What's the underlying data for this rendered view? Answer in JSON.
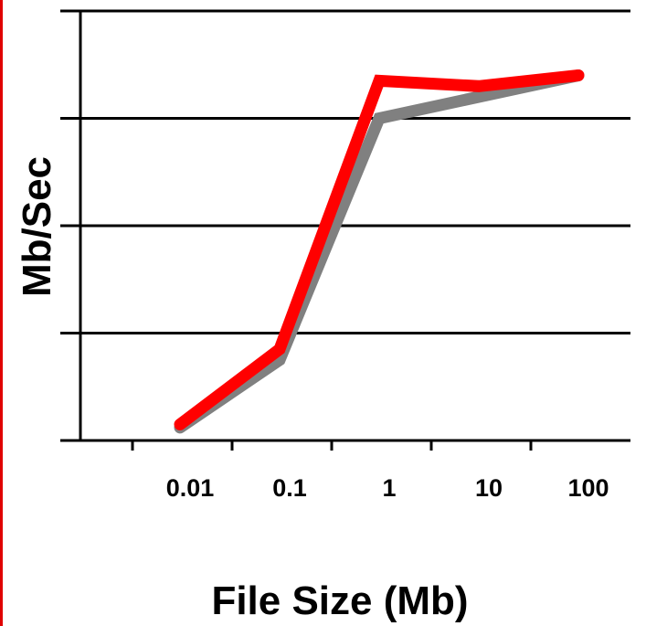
{
  "chart_data": {
    "type": "line",
    "x": [
      0.03,
      0.3,
      3,
      30,
      300
    ],
    "x_scale": "log",
    "xlim": [
      0.003,
      1000
    ],
    "xticks": [
      0.01,
      0.1,
      1,
      10,
      100
    ],
    "xtick_labels": [
      "0.01",
      "0.1",
      "1",
      "10",
      "100"
    ],
    "ylim": [
      0,
      4
    ],
    "yticks": [
      1,
      2,
      3
    ],
    "ytick_labels": [],
    "xlabel": "File Size (Mb)",
    "ylabel": "Mb/Sec",
    "title": "",
    "grid": true,
    "legend": "none",
    "series": [
      {
        "values": [
          0.12,
          0.75,
          3.0,
          3.2,
          3.4
        ],
        "color": "#808080"
      },
      {
        "values": [
          0.15,
          0.85,
          3.35,
          3.3,
          3.4
        ],
        "color": "#ff0000"
      }
    ]
  },
  "colors": {
    "gridline": "#000000",
    "axis": "#000000",
    "left_rule": "#e00000"
  }
}
